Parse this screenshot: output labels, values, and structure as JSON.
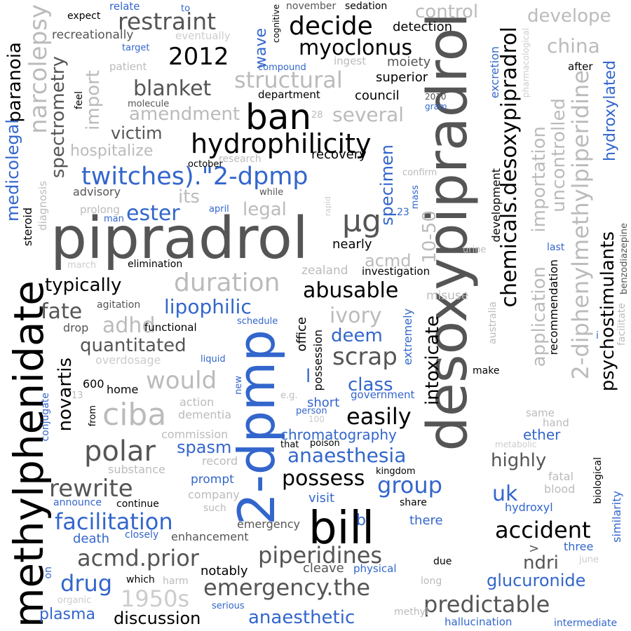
{
  "palette": {
    "black": "#000000",
    "dark_gray": "#555555",
    "gray": "#bbbbbb",
    "light_gray": "#cccccc",
    "blue": "#3366cc"
  },
  "words": [
    {
      "text": "desoxypipradrol",
      "color": "dark_gray"
    },
    {
      "text": "pipradrol",
      "color": "dark_gray"
    },
    {
      "text": "methylphenidate",
      "color": "black"
    },
    {
      "text": "2-dpmp",
      "color": "blue"
    },
    {
      "text": "bill",
      "color": "black"
    },
    {
      "text": "ban",
      "color": "black"
    },
    {
      "text": "hydrophilicity",
      "color": "black"
    },
    {
      "text": "twitches).\"2-dpmp",
      "color": "blue"
    },
    {
      "text": "decide",
      "color": "black"
    },
    {
      "text": "restraint",
      "color": "dark_gray"
    },
    {
      "text": "2012",
      "color": "black"
    },
    {
      "text": "myoclonus",
      "color": "black"
    },
    {
      "text": "blanket",
      "color": "dark_gray"
    },
    {
      "text": "structural",
      "color": "gray"
    },
    {
      "text": "amendment",
      "color": "gray"
    },
    {
      "text": "several",
      "color": "gray"
    },
    {
      "text": "victim",
      "color": "dark_gray"
    },
    {
      "text": "hospitalize",
      "color": "gray"
    },
    {
      "text": "ester",
      "color": "blue"
    },
    {
      "text": "its",
      "color": "gray"
    },
    {
      "text": "legal",
      "color": "gray"
    },
    {
      "text": "µg",
      "color": "dark_gray"
    },
    {
      "text": "duration",
      "color": "gray"
    },
    {
      "text": "typically",
      "color": "black"
    },
    {
      "text": "abusable",
      "color": "black"
    },
    {
      "text": "fate",
      "color": "dark_gray"
    },
    {
      "text": "lipophilic",
      "color": "blue"
    },
    {
      "text": "adhd",
      "color": "gray"
    },
    {
      "text": "ivory",
      "color": "gray"
    },
    {
      "text": "quantitated",
      "color": "dark_gray"
    },
    {
      "text": "deem",
      "color": "blue"
    },
    {
      "text": "scrap",
      "color": "dark_gray"
    },
    {
      "text": "would",
      "color": "gray"
    },
    {
      "text": "class",
      "color": "blue"
    },
    {
      "text": "ciba",
      "color": "gray"
    },
    {
      "text": "easily",
      "color": "black"
    },
    {
      "text": "polar",
      "color": "dark_gray"
    },
    {
      "text": "spasm",
      "color": "blue"
    },
    {
      "text": "chromatography",
      "color": "blue"
    },
    {
      "text": "anaesthesia",
      "color": "blue"
    },
    {
      "text": "possess",
      "color": "black"
    },
    {
      "text": "group",
      "color": "blue"
    },
    {
      "text": "rewrite",
      "color": "dark_gray"
    },
    {
      "text": "facilitation",
      "color": "blue"
    },
    {
      "text": "highly",
      "color": "dark_gray"
    },
    {
      "text": "uk",
      "color": "blue"
    },
    {
      "text": "accident",
      "color": "black"
    },
    {
      "text": "acmd.prior",
      "color": "dark_gray"
    },
    {
      "text": "piperidines",
      "color": "dark_gray"
    },
    {
      "text": "ndri",
      "color": "dark_gray"
    },
    {
      "text": "drug",
      "color": "blue"
    },
    {
      "text": "emergency.the",
      "color": "dark_gray"
    },
    {
      "text": "glucuronide",
      "color": "blue"
    },
    {
      "text": "1950s",
      "color": "light_gray"
    },
    {
      "text": "predictable",
      "color": "dark_gray"
    },
    {
      "text": "discussion",
      "color": "black"
    },
    {
      "text": "anaesthetic",
      "color": "blue"
    },
    {
      "text": "plasma",
      "color": "blue"
    },
    {
      "text": "control",
      "color": "gray"
    },
    {
      "text": "develope",
      "color": "gray"
    },
    {
      "text": "china",
      "color": "gray"
    },
    {
      "text": "hydroxylated",
      "color": "blue"
    },
    {
      "text": "uncontrolled",
      "color": "gray"
    },
    {
      "text": "importation",
      "color": "gray"
    },
    {
      "text": "chemicals.desoxypipradrol",
      "color": "black"
    },
    {
      "text": "2-diphenylmethylpiperidine",
      "color": "gray"
    },
    {
      "text": "application",
      "color": "gray"
    },
    {
      "text": "psychostimulants",
      "color": "black"
    },
    {
      "text": "intoxicate",
      "color": "black"
    },
    {
      "text": "10-50",
      "color": "gray"
    },
    {
      "text": "specimen",
      "color": "blue"
    },
    {
      "text": "narcolepsy",
      "color": "gray"
    },
    {
      "text": "spectrometry",
      "color": "dark_gray"
    },
    {
      "text": "import",
      "color": "gray"
    },
    {
      "text": "paranoia",
      "color": "black"
    },
    {
      "text": "medicolegal",
      "color": "blue"
    },
    {
      "text": "novartis",
      "color": "black"
    },
    {
      "text": "wave",
      "color": "blue"
    },
    {
      "text": "detection",
      "color": "black"
    },
    {
      "text": "moiety",
      "color": "dark_gray"
    },
    {
      "text": "superior",
      "color": "black"
    },
    {
      "text": "council",
      "color": "black"
    },
    {
      "text": "recovery",
      "color": "black"
    },
    {
      "text": "acmd",
      "color": "gray"
    },
    {
      "text": "nearly",
      "color": "black"
    },
    {
      "text": "investigation",
      "color": "black"
    },
    {
      "text": "zealand",
      "color": "gray"
    },
    {
      "text": "misuse",
      "color": "gray"
    },
    {
      "text": "extremely",
      "color": "blue"
    },
    {
      "text": "office",
      "color": "black"
    },
    {
      "text": "possession",
      "color": "black"
    },
    {
      "text": "l",
      "color": "blue"
    },
    {
      "text": "short",
      "color": "blue"
    },
    {
      "text": "government",
      "color": "blue"
    },
    {
      "text": "ether",
      "color": "blue"
    },
    {
      "text": "development",
      "color": "black"
    },
    {
      "text": "recommendation",
      "color": "black"
    },
    {
      "text": "excretion",
      "color": "blue"
    },
    {
      "text": "pharmacological",
      "color": "light_gray"
    },
    {
      "text": "after",
      "color": "black"
    },
    {
      "text": "benzodiazepine",
      "color": "dark_gray"
    },
    {
      "text": "facilitate",
      "color": "gray"
    },
    {
      "text": "australia",
      "color": "gray"
    },
    {
      "text": "similarity",
      "color": "blue"
    },
    {
      "text": "biological",
      "color": "black"
    },
    {
      "text": "fatal",
      "color": "gray"
    },
    {
      "text": "blood",
      "color": "gray"
    },
    {
      "text": "hydroxyl",
      "color": "blue"
    },
    {
      "text": "three",
      "color": "blue"
    },
    {
      "text": "june",
      "color": "light_gray"
    },
    {
      "text": "intermediate",
      "color": "blue"
    },
    {
      "text": "hallucination",
      "color": "blue"
    },
    {
      "text": "methyl",
      "color": "gray"
    },
    {
      "text": "long",
      "color": "gray"
    },
    {
      "text": "due",
      "color": "black"
    },
    {
      "text": "physical",
      "color": "blue"
    },
    {
      "text": "cleave",
      "color": "dark_gray"
    },
    {
      "text": "notably",
      "color": "black"
    },
    {
      "text": "serious",
      "color": "blue"
    },
    {
      "text": "organic",
      "color": "light_gray"
    },
    {
      "text": "which",
      "color": "black"
    },
    {
      "text": "harm",
      "color": "gray"
    },
    {
      "text": "death",
      "color": "blue"
    },
    {
      "text": "closely",
      "color": "blue"
    },
    {
      "text": "enhancement",
      "color": "dark_gray"
    },
    {
      "text": "emergency",
      "color": "dark_gray"
    },
    {
      "text": "b",
      "color": "blue"
    },
    {
      "text": "visit",
      "color": "blue"
    },
    {
      "text": "there",
      "color": "blue"
    },
    {
      "text": "share",
      "color": "black"
    },
    {
      "text": "kingdom",
      "color": "black"
    },
    {
      "text": "such",
      "color": "gray"
    },
    {
      "text": "company",
      "color": "gray"
    },
    {
      "text": "prompt",
      "color": "blue"
    },
    {
      "text": "announce",
      "color": "blue"
    },
    {
      "text": "continue",
      "color": "black"
    },
    {
      "text": "record",
      "color": "gray"
    },
    {
      "text": "substance",
      "color": "gray"
    },
    {
      "text": "commission",
      "color": "gray"
    },
    {
      "text": "dementia",
      "color": "gray"
    },
    {
      "text": "action",
      "color": "gray"
    },
    {
      "text": "home",
      "color": "black"
    },
    {
      "text": "600",
      "color": "black"
    },
    {
      "text": "overdosage",
      "color": "light_gray"
    },
    {
      "text": "liquid",
      "color": "blue"
    },
    {
      "text": "functional",
      "color": "black"
    },
    {
      "text": "drop",
      "color": "dark_gray"
    },
    {
      "text": "agitation",
      "color": "dark_gray"
    },
    {
      "text": "schedule",
      "color": "blue"
    },
    {
      "text": "elimination",
      "color": "black"
    },
    {
      "text": "march",
      "color": "light_gray"
    },
    {
      "text": "steroid",
      "color": "black"
    },
    {
      "text": "diagnosis",
      "color": "gray"
    },
    {
      "text": "prolong",
      "color": "gray"
    },
    {
      "text": "man",
      "color": "blue"
    },
    {
      "text": "april",
      "color": "blue"
    },
    {
      "text": "while",
      "color": "dark_gray"
    },
    {
      "text": "advisory",
      "color": "dark_gray"
    },
    {
      "text": "research",
      "color": "gray"
    },
    {
      "text": "october",
      "color": "black"
    },
    {
      "text": "rapid",
      "color": "light_gray"
    },
    {
      "text": "mass",
      "color": "blue"
    },
    {
      "text": "23",
      "color": "blue"
    },
    {
      "text": "confirm",
      "color": "gray"
    },
    {
      "text": "department",
      "color": "black"
    },
    {
      "text": "28",
      "color": "gray"
    },
    {
      "text": "molecule",
      "color": "dark_gray"
    },
    {
      "text": "feel",
      "color": "black"
    },
    {
      "text": "patient",
      "color": "gray"
    },
    {
      "text": "target",
      "color": "blue"
    },
    {
      "text": "recreationally",
      "color": "dark_gray"
    },
    {
      "text": "eventually",
      "color": "light_gray"
    },
    {
      "text": "expect",
      "color": "black"
    },
    {
      "text": "relate",
      "color": "blue"
    },
    {
      "text": "to",
      "color": "blue"
    },
    {
      "text": "cognitive",
      "color": "black"
    },
    {
      "text": "november",
      "color": "dark_gray"
    },
    {
      "text": "sedation",
      "color": "black"
    },
    {
      "text": "ingest",
      "color": "gray"
    },
    {
      "text": "compound",
      "color": "blue"
    },
    {
      "text": "2010",
      "color": "dark_gray"
    },
    {
      "text": "gram",
      "color": "blue"
    },
    {
      "text": "last",
      "color": "blue"
    },
    {
      "text": "urine",
      "color": "gray"
    },
    {
      "text": "make",
      "color": "black"
    },
    {
      "text": "same",
      "color": "gray"
    },
    {
      "text": "hand",
      "color": "gray"
    },
    {
      "text": "metabolic",
      "color": "light_gray"
    },
    {
      "text": "e.g.",
      "color": "gray"
    },
    {
      "text": "person",
      "color": "blue"
    },
    {
      "text": "100",
      "color": "light_gray"
    },
    {
      "text": "that",
      "color": "black"
    },
    {
      "text": "poison",
      "color": "black"
    },
    {
      "text": "13",
      "color": "gray"
    },
    {
      "text": "from",
      "color": "black"
    },
    {
      "text": "conjugate",
      "color": "blue"
    },
    {
      "text": "new",
      "color": "blue"
    },
    {
      "text": "on",
      "color": "blue"
    },
    {
      "text": ">",
      "color": "dark_gray"
    },
    {
      "text": "i",
      "color": "blue"
    }
  ]
}
